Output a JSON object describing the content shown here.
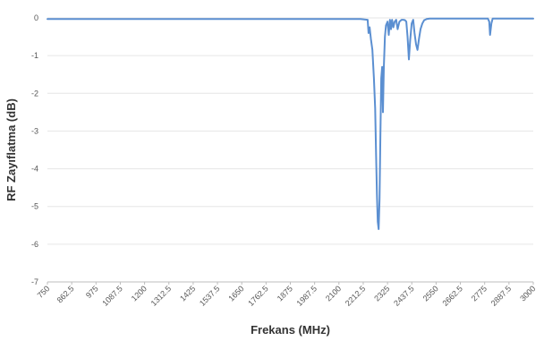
{
  "chart_data": {
    "type": "line",
    "title": "",
    "xlabel": "Frekans (MHz)",
    "ylabel": "RF Zayıflatma (dB)",
    "xlim": [
      750,
      3000
    ],
    "ylim": [
      -7,
      0
    ],
    "x_ticks": [
      750,
      862.5,
      975,
      1087.5,
      1200,
      1312.5,
      1425,
      1537.5,
      1650,
      1762.5,
      1875,
      1987.5,
      2100,
      2212.5,
      2325,
      2437.5,
      2550,
      2662.5,
      2775,
      2887.5,
      3000
    ],
    "x_tick_labels": [
      "750",
      "862.5",
      "975",
      "1087.5",
      "1200",
      "1312.5",
      "1425",
      "1537.5",
      "1650",
      "1762.5",
      "1875",
      "1987.5",
      "2100",
      "2212.5",
      "2325",
      "2437.5",
      "2550",
      "2662.5",
      "2775",
      "2887.5",
      "3000"
    ],
    "y_ticks": [
      0,
      -1,
      -2,
      -3,
      -4,
      -5,
      -6,
      -7
    ],
    "y_tick_labels": [
      "0",
      "-1",
      "-2",
      "-3",
      "-4",
      "-5",
      "-6",
      "-7"
    ],
    "grid": "horizontal",
    "legend": "none",
    "series": [
      {
        "color": "#5b8fd1",
        "x": [
          750,
          2200,
          2233,
          2237,
          2242,
          2248,
          2255,
          2262,
          2268,
          2272,
          2276,
          2280,
          2284,
          2288,
          2292,
          2296,
          2300,
          2304,
          2308,
          2313,
          2318,
          2325,
          2331,
          2336,
          2341,
          2346,
          2352,
          2358,
          2365,
          2372,
          2380,
          2390,
          2398,
          2406,
          2412,
          2418,
          2424,
          2430,
          2437,
          2444,
          2450,
          2457,
          2464,
          2471,
          2478,
          2486,
          2495,
          2506,
          2520,
          2540,
          2600,
          2700,
          2790,
          2796,
          2800,
          2806,
          2812,
          2850,
          3000
        ],
        "y": [
          -0.03,
          -0.03,
          -0.05,
          -0.4,
          -0.25,
          -0.55,
          -0.85,
          -1.6,
          -2.4,
          -3.6,
          -4.7,
          -5.4,
          -5.6,
          -4.8,
          -3.2,
          -1.6,
          -1.3,
          -2.5,
          -1.3,
          -0.5,
          -0.2,
          -0.1,
          -0.45,
          -0.05,
          -0.3,
          -0.05,
          -0.25,
          -0.1,
          -0.05,
          -0.3,
          -0.1,
          -0.05,
          -0.05,
          -0.06,
          -0.1,
          -0.5,
          -1.1,
          -0.6,
          -0.15,
          -0.05,
          -0.4,
          -0.7,
          -0.85,
          -0.55,
          -0.3,
          -0.15,
          -0.06,
          -0.03,
          -0.02,
          -0.02,
          -0.02,
          -0.02,
          -0.02,
          -0.1,
          -0.45,
          -0.15,
          -0.02,
          -0.02,
          -0.02
        ]
      }
    ]
  }
}
